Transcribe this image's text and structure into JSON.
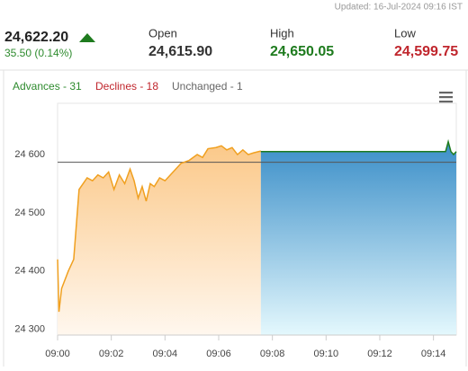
{
  "header": {
    "updated": "Updated: 16-Jul-2024 09:16 IST",
    "last": "24,622.20",
    "change": "35.50 (0.14%)",
    "stats": [
      {
        "label": "Open",
        "value": "24,615.90"
      },
      {
        "label": "High",
        "value": "24,650.05"
      },
      {
        "label": "Low",
        "value": "24,599.75"
      }
    ]
  },
  "breadth": [
    "Advances - 31",
    "Declines - 18",
    "Unchanged - 1"
  ],
  "chart_data": {
    "type": "area",
    "xlim": [
      0,
      14.85
    ],
    "ylim": [
      24290,
      24688
    ],
    "xticks": [
      {
        "value": 0,
        "label": "09:00"
      },
      {
        "value": 2,
        "label": "09:02"
      },
      {
        "value": 4,
        "label": "09:04"
      },
      {
        "value": 6,
        "label": "09:06"
      },
      {
        "value": 8,
        "label": "09:08"
      },
      {
        "value": 10,
        "label": "09:10"
      },
      {
        "value": 12,
        "label": "09:12"
      },
      {
        "value": 14,
        "label": "09:14"
      }
    ],
    "yticks": [
      {
        "value": 24300,
        "label": "24 300"
      },
      {
        "value": 24400,
        "label": "24 400"
      },
      {
        "value": 24500,
        "label": "24 500"
      },
      {
        "value": 24600,
        "label": "24 600"
      }
    ],
    "reference": 24586.7,
    "grid": false,
    "series": [
      {
        "color": "#f0a020",
        "fill": "orange",
        "x": [
          0,
          0.05,
          0.15,
          0.4,
          0.6,
          0.7,
          0.8,
          0.95,
          1.1,
          1.3,
          1.5,
          1.7,
          1.9,
          2.1,
          2.3,
          2.5,
          2.7,
          2.85,
          3.0,
          3.15,
          3.3,
          3.45,
          3.6,
          3.8,
          4.0,
          4.3,
          4.6,
          4.9,
          5.2,
          5.4,
          5.6,
          5.9,
          6.1,
          6.3,
          6.5,
          6.7,
          6.9,
          7.1,
          7.3,
          7.57
        ],
        "values": [
          24420,
          24330,
          24370,
          24400,
          24420,
          24480,
          24540,
          24550,
          24560,
          24555,
          24565,
          24560,
          24570,
          24540,
          24565,
          24550,
          24575,
          24555,
          24525,
          24545,
          24520,
          24550,
          24545,
          24560,
          24555,
          24570,
          24585,
          24590,
          24600,
          24595,
          24610,
          24612,
          24615,
          24608,
          24612,
          24600,
          24608,
          24600,
          24603,
          24606
        ]
      },
      {
        "color": "#1e7b1e",
        "fill": "blue",
        "x": [
          7.57,
          14.45,
          14.55,
          14.65,
          14.75,
          14.85
        ],
        "values": [
          24605,
          24605,
          24622,
          24605,
          24600,
          24605
        ]
      }
    ]
  }
}
